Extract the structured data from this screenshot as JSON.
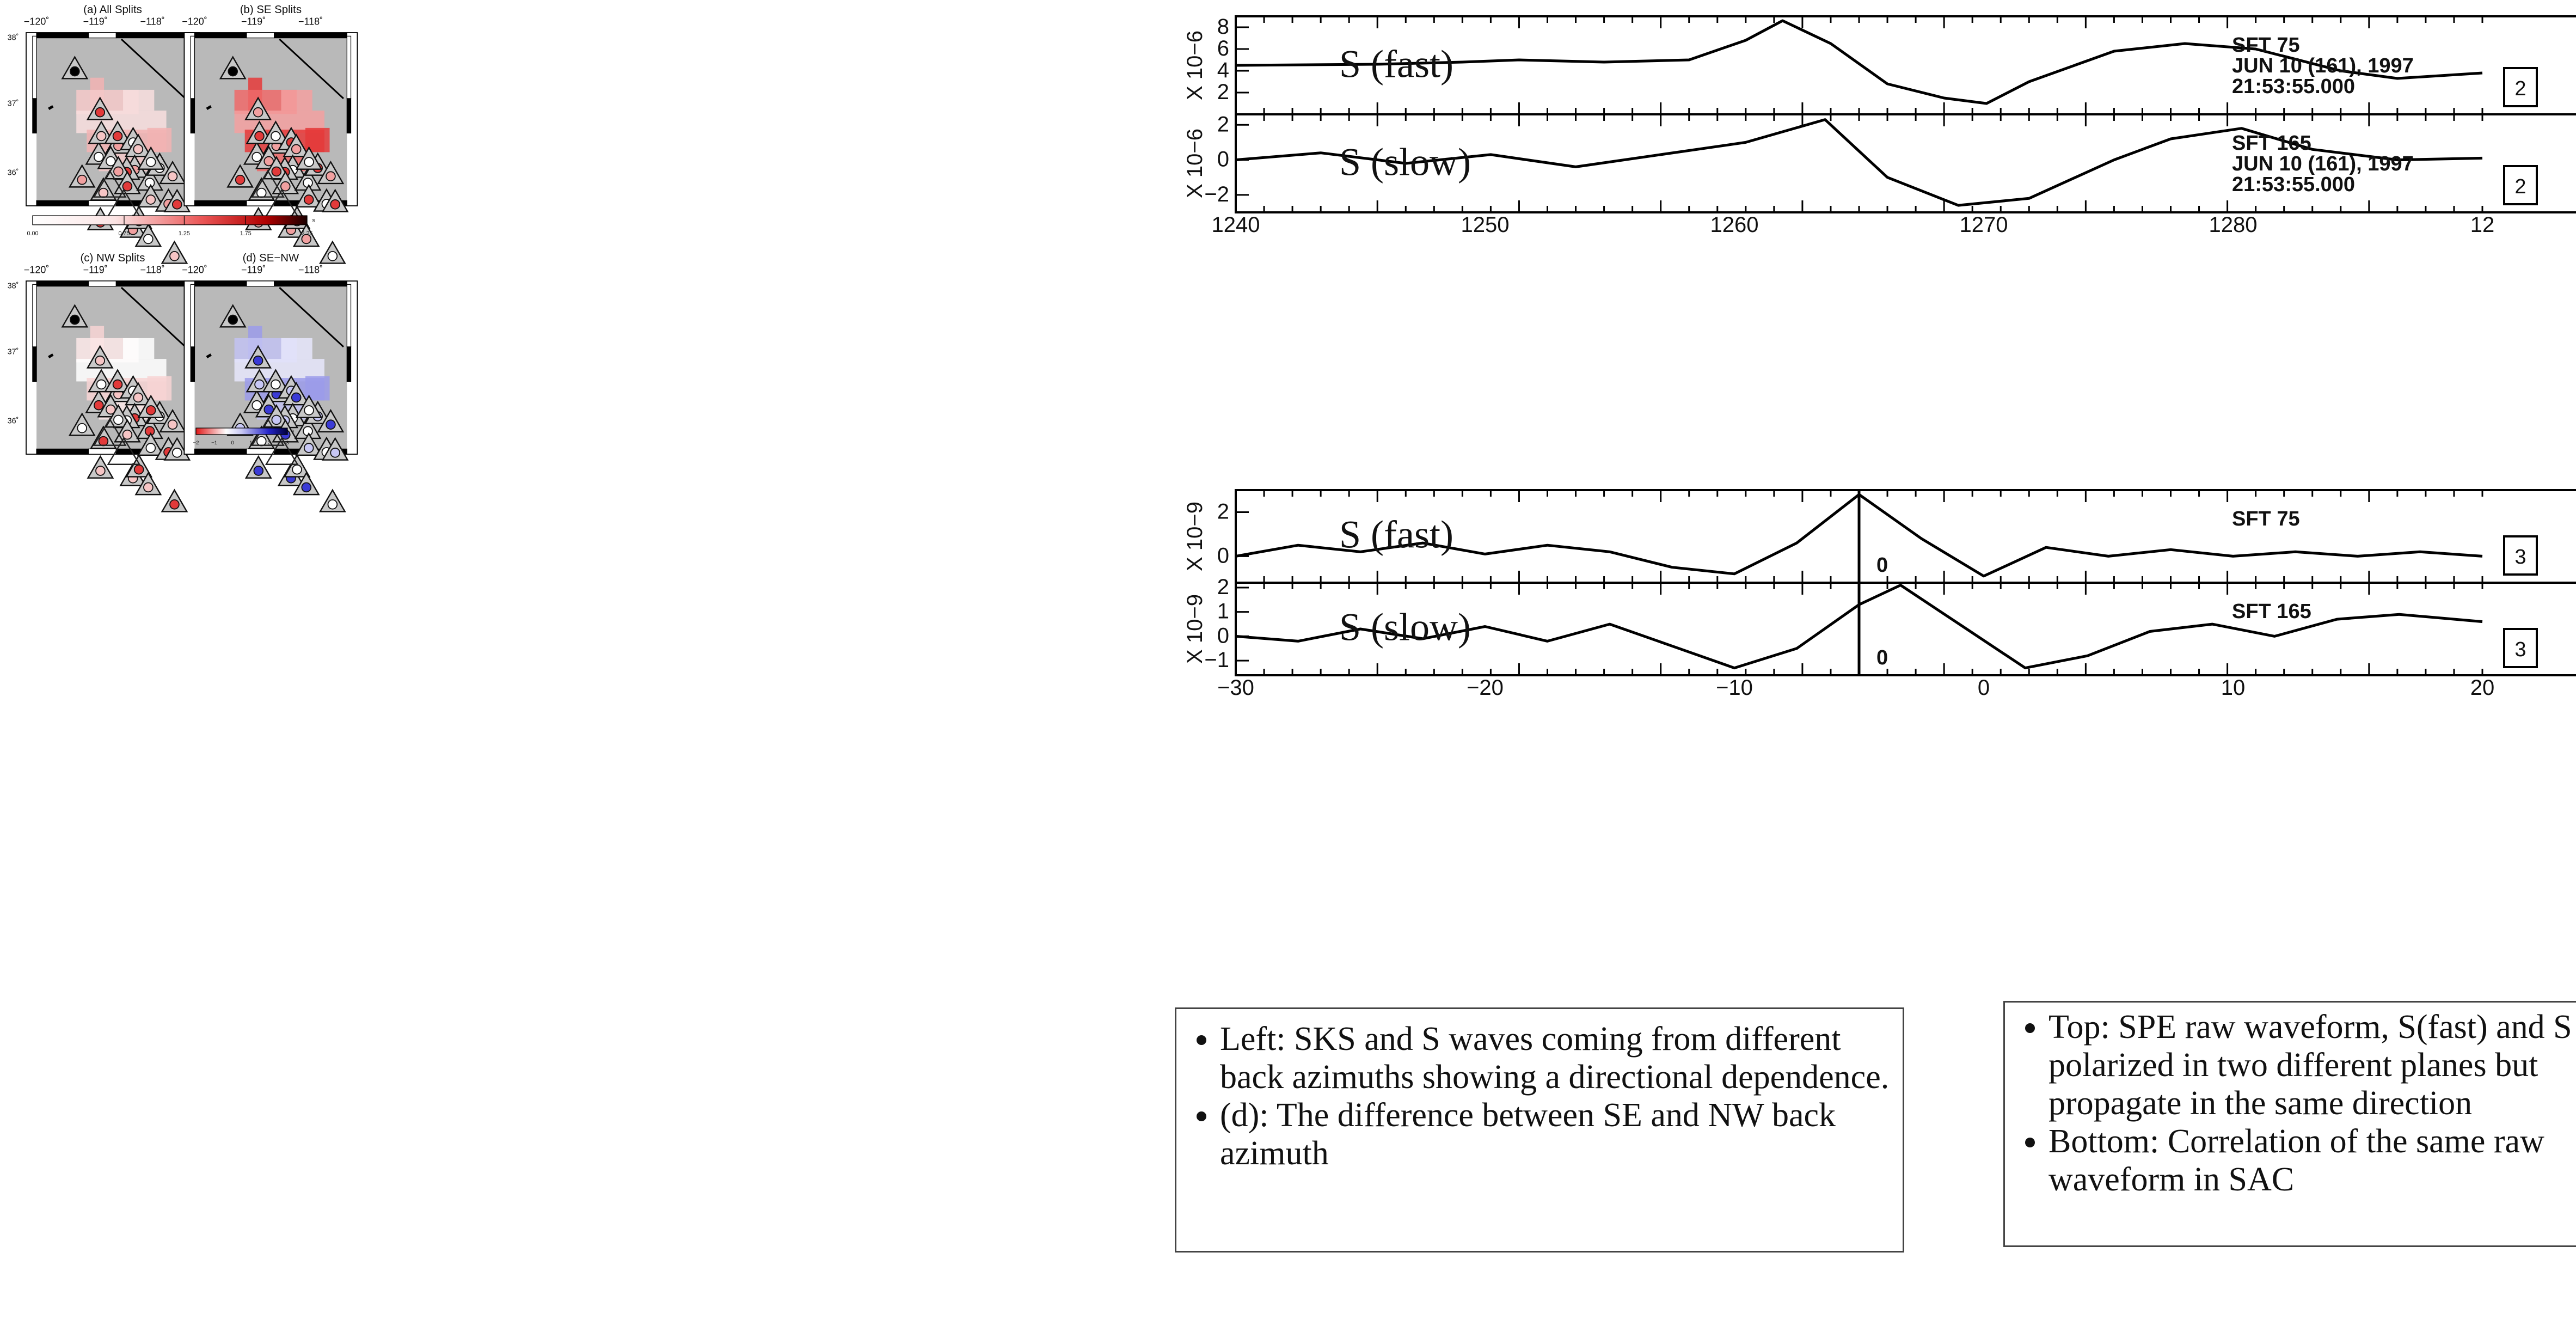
{
  "maps": {
    "titles": [
      "(a) All Splits",
      "(b) SE Splits",
      "(c) NW Splits",
      "(d) SE−NW"
    ],
    "lon_ticks_full": [
      "−120˚",
      "−119˚",
      "−118˚"
    ],
    "lon_ticks_partial": [
      "−120˚",
      "−119˚",
      "−118˚"
    ],
    "lat_ticks": [
      "38˚",
      "37˚",
      "36˚"
    ],
    "colorbar_top": {
      "ticks": [
        "0.00",
        "0.75",
        "1.25",
        "1.75",
        "2.25"
      ],
      "unit": "s"
    },
    "colorbar_diff": {
      "ticks": [
        "−2",
        "−1",
        "0",
        "1",
        "2",
        "3"
      ],
      "unit": "s"
    },
    "colors": {
      "land": "#b9b9b9",
      "red": "#e5262a",
      "blue": "#3b3bd6",
      "frame": "#000000"
    }
  },
  "chart_data": [
    {
      "type": "line",
      "title": "",
      "xlim": [
        1240,
        1284
      ],
      "x_ticks": [
        "1240",
        "1250",
        "1260",
        "1270",
        "1280",
        "12"
      ],
      "traces": [
        {
          "label": "S (fast)",
          "ylabel": "X 10−6",
          "y_ticks": [
            "8",
            "6",
            "4",
            "2"
          ],
          "ylim": [
            0,
            9
          ],
          "header": [
            "SFT   75",
            "JUN  10  (161),  1997",
            "21:53:55.000"
          ],
          "box": "2",
          "x": [
            1240,
            1245,
            1248,
            1250,
            1253,
            1256,
            1258,
            1259.3,
            1261,
            1263,
            1265,
            1266.5,
            1268,
            1271,
            1273.5,
            1276,
            1279,
            1281,
            1284
          ],
          "values": [
            4.5,
            4.6,
            4.8,
            5.0,
            4.8,
            5.0,
            6.8,
            8.6,
            6.5,
            2.8,
            1.5,
            1.0,
            3.0,
            5.8,
            6.5,
            6.0,
            4.0,
            3.3,
            3.8
          ]
        },
        {
          "label": "S (slow)",
          "ylabel": "X 10−6",
          "y_ticks": [
            "2",
            "0",
            "−2"
          ],
          "ylim": [
            -3,
            2.6
          ],
          "header": [
            "SFT   165",
            "JUN  10  (161),  1997",
            "21:53:55.000"
          ],
          "box": "2",
          "x": [
            1240,
            1243,
            1246,
            1249,
            1252,
            1255,
            1258,
            1260.8,
            1263,
            1265.5,
            1268,
            1271,
            1273,
            1275.5,
            1278,
            1281,
            1284
          ],
          "values": [
            0.0,
            0.4,
            -0.2,
            0.3,
            -0.4,
            0.3,
            1.0,
            2.3,
            -1.0,
            -2.6,
            -2.2,
            0.0,
            1.2,
            1.8,
            0.6,
            0.0,
            0.1
          ]
        }
      ]
    },
    {
      "type": "line",
      "title": "",
      "xlim": [
        -30,
        30
      ],
      "x_ticks": [
        "−30",
        "−20",
        "−10",
        "0",
        "10",
        "20"
      ],
      "marker": {
        "x": 0,
        "label": "0"
      },
      "traces": [
        {
          "label": "S (fast)",
          "ylabel": "X 10−9",
          "y_ticks": [
            "2",
            "0"
          ],
          "ylim": [
            -1.2,
            3
          ],
          "header": [
            "SFT   75"
          ],
          "box": "3",
          "x": [
            -30,
            -27,
            -24,
            -21,
            -18,
            -15,
            -12,
            -9,
            -6,
            -3,
            0,
            3,
            6,
            9,
            12,
            15,
            18,
            21,
            24,
            27,
            30
          ],
          "values": [
            0.0,
            0.5,
            0.2,
            0.6,
            0.1,
            0.5,
            0.2,
            -0.5,
            -0.8,
            0.6,
            2.8,
            0.8,
            -0.9,
            0.4,
            0.0,
            0.3,
            0.0,
            0.2,
            0.0,
            0.2,
            0.0
          ],
          "marker_label": "0"
        },
        {
          "label": "S (slow)",
          "ylabel": "X 10−9",
          "y_ticks": [
            "2",
            "1",
            "0",
            "−1"
          ],
          "ylim": [
            -1.6,
            2.2
          ],
          "header": [
            "SFT   165"
          ],
          "box": "3",
          "x": [
            -30,
            -27,
            -24,
            -21,
            -18,
            -15,
            -12,
            -9,
            -6,
            -3,
            0,
            2,
            5,
            8,
            11,
            14,
            17,
            20,
            23,
            26,
            30
          ],
          "values": [
            0.0,
            -0.2,
            0.3,
            -0.1,
            0.4,
            -0.2,
            0.5,
            -0.4,
            -1.3,
            -0.5,
            1.3,
            2.1,
            0.4,
            -1.3,
            -0.8,
            0.2,
            0.5,
            0.0,
            0.7,
            0.9,
            0.6
          ],
          "marker_label": "0"
        }
      ]
    }
  ],
  "notes": {
    "left": [
      "Left: SKS and S waves coming from different back azimuths showing a directional dependence.",
      "(d): The difference between SE and NW back azimuth"
    ],
    "right": [
      "Top: SPE raw waveform, S(fast) and S (slow) polarized in two different planes but propagate in the same direction",
      "Bottom: Correlation of the same raw waveform in SAC"
    ]
  }
}
